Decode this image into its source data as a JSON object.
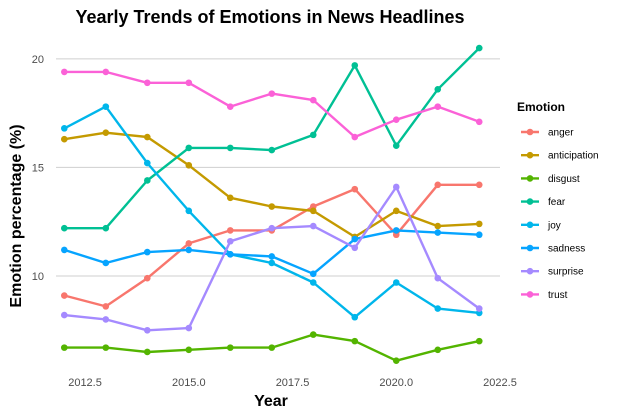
{
  "chart_data": {
    "type": "line",
    "title": "Yearly Trends of Emotions in News Headlines",
    "xlabel": "Year",
    "ylabel": "Emotion percentage (%)",
    "xlim": [
      2011.8,
      2022.5
    ],
    "ylim": [
      5.9,
      21.1
    ],
    "x_ticks": [
      2012.5,
      2015.0,
      2017.5,
      2020.0,
      2022.5
    ],
    "x_tick_labels": [
      "2012.5",
      "2015.0",
      "2017.5",
      "2020.0",
      "2022.5"
    ],
    "y_ticks": [
      10,
      15,
      20
    ],
    "y_tick_labels": [
      "10",
      "15",
      "20"
    ],
    "grid": "horizontal",
    "legend": {
      "title": "Emotion",
      "position": "right"
    },
    "x": [
      2012,
      2013,
      2014,
      2015,
      2016,
      2017,
      2018,
      2019,
      2020,
      2021,
      2022
    ],
    "series": [
      {
        "name": "anger",
        "color": "#F8766D",
        "values": [
          9.1,
          8.6,
          9.9,
          11.5,
          12.1,
          12.1,
          13.2,
          14.0,
          11.9,
          14.2,
          14.2
        ]
      },
      {
        "name": "anticipation",
        "color": "#C49A00",
        "values": [
          16.3,
          16.6,
          16.4,
          15.1,
          13.6,
          13.2,
          13.0,
          11.8,
          13.0,
          12.3,
          12.4
        ]
      },
      {
        "name": "disgust",
        "color": "#53B400",
        "values": [
          6.7,
          6.7,
          6.5,
          6.6,
          6.7,
          6.7,
          7.3,
          7.0,
          6.1,
          6.6,
          7.0
        ]
      },
      {
        "name": "fear",
        "color": "#00C094",
        "values": [
          12.2,
          12.2,
          14.4,
          15.9,
          15.9,
          15.8,
          16.5,
          19.7,
          16.0,
          18.6,
          20.5
        ]
      },
      {
        "name": "joy",
        "color": "#00B6EB",
        "values": [
          16.8,
          17.8,
          15.2,
          13.0,
          11.0,
          10.6,
          9.7,
          8.1,
          9.7,
          8.5,
          8.3
        ]
      },
      {
        "name": "sadness",
        "color": "#06A4FF",
        "values": [
          11.2,
          10.6,
          11.1,
          11.2,
          11.0,
          10.9,
          10.1,
          11.7,
          12.1,
          12.0,
          11.9
        ]
      },
      {
        "name": "surprise",
        "color": "#A58AFF",
        "values": [
          8.2,
          8.0,
          7.5,
          7.6,
          11.6,
          12.2,
          12.3,
          11.3,
          14.1,
          9.9,
          8.5
        ]
      },
      {
        "name": "trust",
        "color": "#FB61D7",
        "values": [
          19.4,
          19.4,
          18.9,
          18.9,
          17.8,
          18.4,
          18.1,
          16.4,
          17.2,
          17.8,
          17.1
        ]
      }
    ]
  }
}
